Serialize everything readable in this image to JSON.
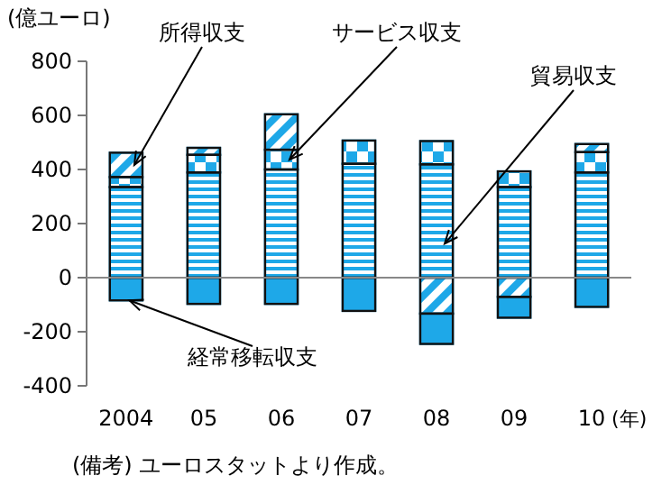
{
  "chart_data": {
    "type": "bar",
    "stacked": true,
    "ylabel": "(億ユーロ)",
    "xlabel": "(年)",
    "categories": [
      "2004",
      "05",
      "06",
      "07",
      "08",
      "09",
      "10"
    ],
    "series": [
      {
        "name": "貿易収支",
        "color": "#1ea8e8",
        "values": [
          335,
          389,
          400,
          421,
          419,
          335,
          389
        ]
      },
      {
        "name": "サービス収支",
        "color": "#1ea8e8",
        "values": [
          37,
          65,
          73,
          86,
          86,
          58,
          75
        ]
      },
      {
        "name": "所得収支",
        "color": "#1ea8e8",
        "values": [
          90,
          26,
          131,
          null,
          -133,
          -71,
          30
        ]
      },
      {
        "name": "経常移転収支",
        "color": "#1ea8e8",
        "values": [
          -84,
          -97,
          -97,
          -123,
          -112,
          -77,
          -108
        ]
      }
    ],
    "ylim": [
      -400,
      800
    ],
    "yticks": [
      -400,
      -200,
      0,
      200,
      400,
      600,
      800
    ],
    "legend": false,
    "annotations": [
      "(備考) ユーロスタットより作成。"
    ]
  }
}
